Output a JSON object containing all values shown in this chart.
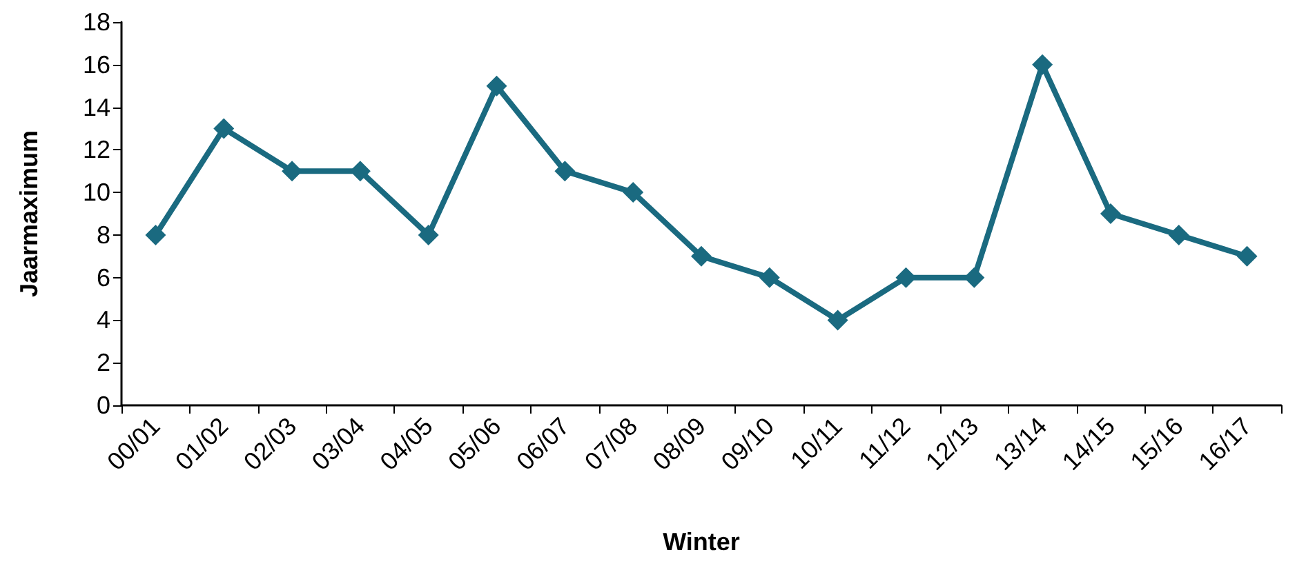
{
  "chart_data": {
    "type": "line",
    "xlabel": "Winter",
    "ylabel": "Jaarmaximum",
    "categories": [
      "00/01",
      "01/02",
      "02/03",
      "03/04",
      "04/05",
      "05/06",
      "06/07",
      "07/08",
      "08/09",
      "09/10",
      "10/11",
      "11/12",
      "12/13",
      "13/14",
      "14/15",
      "15/16",
      "16/17"
    ],
    "series": [
      {
        "color": "#1a6a80",
        "values": [
          8,
          13,
          11,
          11,
          8,
          15,
          11,
          10,
          7,
          6,
          4,
          6,
          6,
          16,
          9,
          8,
          7
        ]
      }
    ],
    "ylim": [
      0,
      18
    ],
    "yticks": [
      0,
      2,
      4,
      6,
      8,
      10,
      12,
      14,
      16,
      18
    ],
    "grid": false,
    "marker": "diamond",
    "line_style": "solid"
  }
}
